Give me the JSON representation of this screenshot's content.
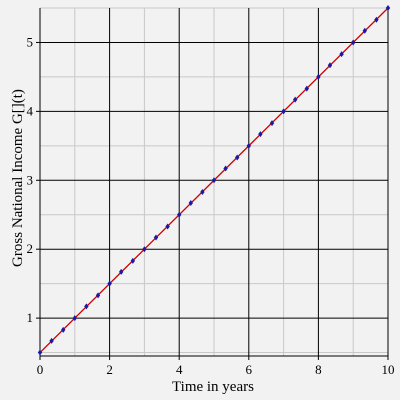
{
  "chart_data": {
    "type": "line",
    "title": "",
    "xlabel": "Time in years",
    "ylabel": "Gross National Income G[](t)",
    "xlim": [
      0,
      10
    ],
    "ylim": [
      0.45,
      5.5
    ],
    "x_ticks": [
      {
        "value": 0,
        "label": "0"
      },
      {
        "value": 2,
        "label": "2"
      },
      {
        "value": 4,
        "label": "4"
      },
      {
        "value": 6,
        "label": "6"
      },
      {
        "value": 8,
        "label": "8"
      },
      {
        "value": 10,
        "label": "10"
      }
    ],
    "y_ticks": [
      {
        "value": 1,
        "label": "1"
      },
      {
        "value": 2,
        "label": "2"
      },
      {
        "value": 3,
        "label": "3"
      },
      {
        "value": 4,
        "label": "4"
      },
      {
        "value": 5,
        "label": "5"
      }
    ],
    "grid": true,
    "colors": {
      "background": "#f2f2f2",
      "major_grid": "#000000",
      "minor_grid": "#c8c8c8",
      "line": "#cc0000",
      "markers": "#1a1aa6"
    },
    "series": [
      {
        "style": "line",
        "x": [
          0,
          10
        ],
        "y": [
          0.5,
          5.5
        ]
      },
      {
        "style": "markers",
        "x": [
          0,
          0.333,
          0.667,
          1,
          1.333,
          1.667,
          2,
          2.333,
          2.667,
          3,
          3.333,
          3.667,
          4,
          4.333,
          4.667,
          5,
          5.333,
          5.667,
          6,
          6.333,
          6.667,
          7,
          7.333,
          7.667,
          8,
          8.333,
          8.667,
          9,
          9.333,
          9.667,
          10
        ],
        "y": [
          0.5,
          0.67,
          0.83,
          1.0,
          1.17,
          1.33,
          1.5,
          1.67,
          1.83,
          2.0,
          2.17,
          2.33,
          2.5,
          2.67,
          2.83,
          3.0,
          3.17,
          3.33,
          3.5,
          3.67,
          3.83,
          4.0,
          4.17,
          4.33,
          4.5,
          4.67,
          4.83,
          5.0,
          5.17,
          5.33,
          5.5
        ]
      }
    ]
  }
}
